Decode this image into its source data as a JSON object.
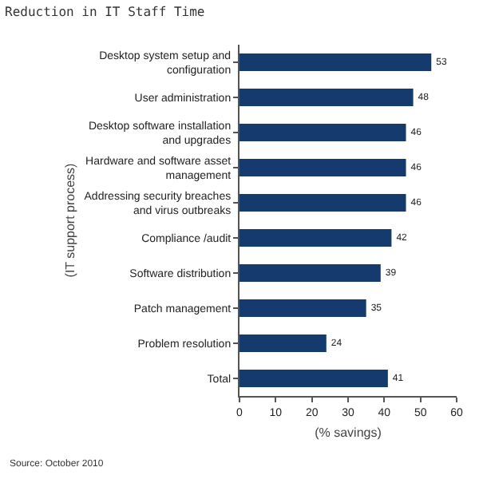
{
  "chart_data": {
    "type": "bar",
    "orientation": "horizontal",
    "title": "Reduction in IT Staff Time",
    "xlabel": "(% savings)",
    "ylabel": "(IT support process)",
    "categories": [
      "Desktop system setup and configuration",
      "User administration",
      "Desktop software installation and upgrades",
      "Hardware and software asset management",
      "Addressing security breaches and virus outbreaks",
      "Compliance /audit",
      "Software distribution",
      "Patch management",
      "Problem resolution",
      "Total"
    ],
    "values": [
      53,
      48,
      46,
      46,
      46,
      42,
      39,
      35,
      24,
      41
    ],
    "color": "#153a6e",
    "data_labels": true,
    "xlim": [
      0,
      60
    ],
    "xticks": [
      0,
      10,
      20,
      30,
      40,
      50,
      60
    ],
    "annotations": [
      "Source: October 2010"
    ]
  }
}
